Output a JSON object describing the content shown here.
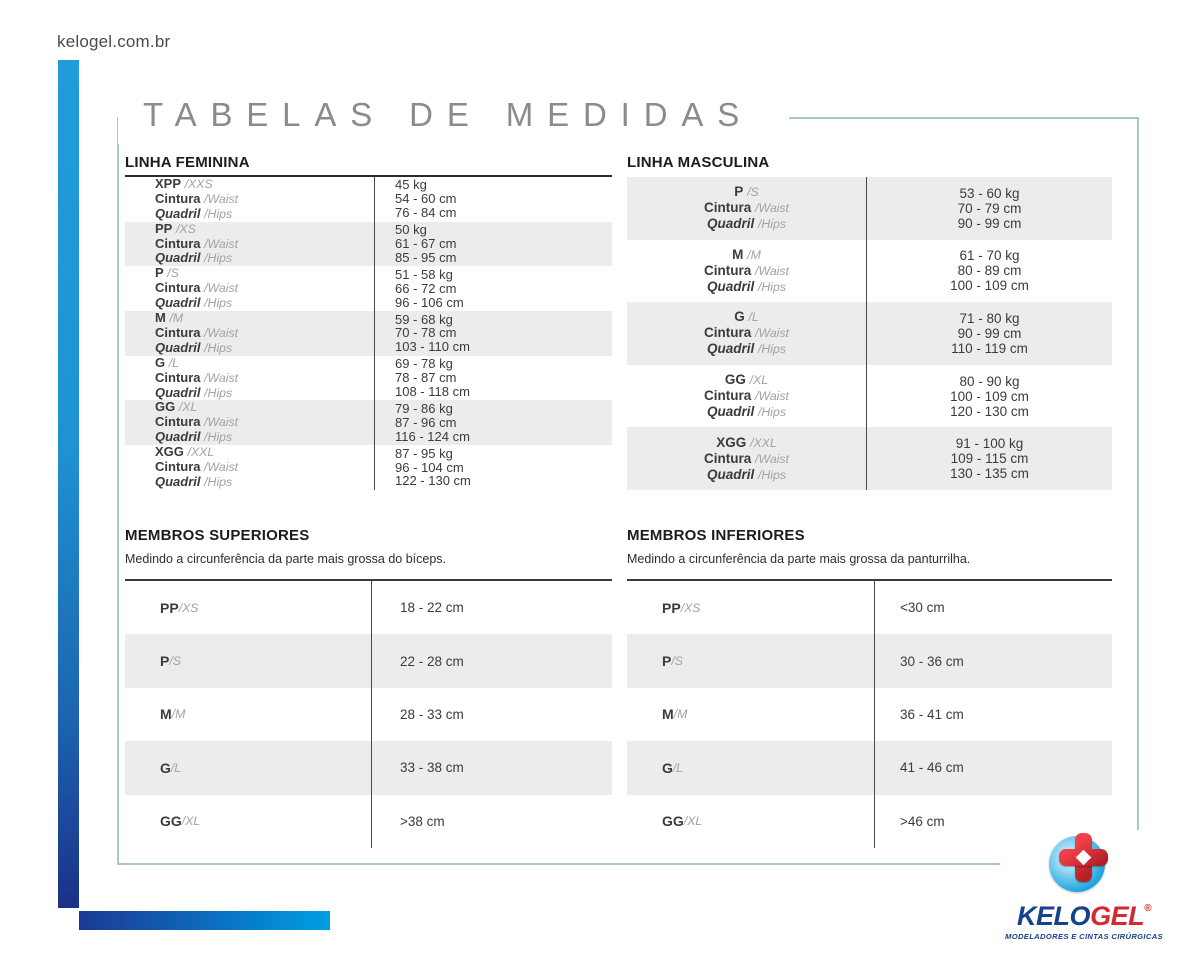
{
  "site_url": "kelogel.com.br",
  "page_title": "TABELAS DE MEDIDAS",
  "labels": {
    "waist_pt": "Cintura",
    "waist_en": "/Waist",
    "hips_pt": "Quadril",
    "hips_en": "/Hips"
  },
  "linha_feminina": {
    "title": "LINHA FEMININA",
    "rows": [
      {
        "size": "XPP",
        "size_en": "/XXS",
        "weight": "45 kg",
        "waist": "54 - 60 cm",
        "hips": "76 - 84 cm"
      },
      {
        "size": "PP",
        "size_en": "/XS",
        "weight": "50 kg",
        "waist": "61 - 67 cm",
        "hips": "85 - 95 cm"
      },
      {
        "size": "P",
        "size_en": "/S",
        "weight": "51 - 58 kg",
        "waist": "66 - 72 cm",
        "hips": "96 - 106 cm"
      },
      {
        "size": "M",
        "size_en": "/M",
        "weight": "59 - 68 kg",
        "waist": "70 - 78 cm",
        "hips": "103 - 110 cm"
      },
      {
        "size": "G",
        "size_en": "/L",
        "weight": "69 - 78 kg",
        "waist": "78 - 87 cm",
        "hips": "108 - 118 cm"
      },
      {
        "size": "GG",
        "size_en": "/XL",
        "weight": "79 - 86 kg",
        "waist": "87 - 96 cm",
        "hips": "116 - 124 cm"
      },
      {
        "size": "XGG",
        "size_en": "/XXL",
        "weight": "87 - 95 kg",
        "waist": "96 - 104 cm",
        "hips": "122 - 130 cm"
      }
    ]
  },
  "linha_masculina": {
    "title": "LINHA MASCULINA",
    "rows": [
      {
        "size": "P",
        "size_en": "/S",
        "weight": "53 - 60 kg",
        "waist": "70 - 79 cm",
        "hips": "90 - 99 cm"
      },
      {
        "size": "M",
        "size_en": "/M",
        "weight": "61 - 70 kg",
        "waist": "80 - 89 cm",
        "hips": "100 - 109 cm"
      },
      {
        "size": "G",
        "size_en": "/L",
        "weight": "71 - 80 kg",
        "waist": "90 - 99 cm",
        "hips": "110 - 119 cm"
      },
      {
        "size": "GG",
        "size_en": "/XL",
        "weight": "80 - 90 kg",
        "waist": "100 - 109 cm",
        "hips": "120 - 130 cm"
      },
      {
        "size": "XGG",
        "size_en": "/XXL",
        "weight": "91 - 100 kg",
        "waist": "109 - 115 cm",
        "hips": "130 - 135 cm"
      }
    ]
  },
  "membros_superiores": {
    "title": "MEMBROS SUPERIORES",
    "description": "Medindo a circunferência da parte mais grossa do bíceps.",
    "rows": [
      {
        "size": "PP",
        "size_en": "/XS",
        "value": "18 - 22 cm"
      },
      {
        "size": "P",
        "size_en": "/S",
        "value": "22 - 28 cm"
      },
      {
        "size": "M",
        "size_en": "/M",
        "value": "28 - 33 cm"
      },
      {
        "size": "G",
        "size_en": "/L",
        "value": "33 - 38 cm"
      },
      {
        "size": "GG",
        "size_en": "/XL",
        "value": ">38 cm"
      }
    ]
  },
  "membros_inferiores": {
    "title": "MEMBROS INFERIORES",
    "description": "Medindo a circunferência da parte mais grossa da panturrilha.",
    "rows": [
      {
        "size": "PP",
        "size_en": "/XS",
        "value": "<30 cm"
      },
      {
        "size": "P",
        "size_en": "/S",
        "value": "30 - 36 cm"
      },
      {
        "size": "M",
        "size_en": "/M",
        "value": "36 - 41 cm"
      },
      {
        "size": "G",
        "size_en": "/L",
        "value": "41 - 46 cm"
      },
      {
        "size": "GG",
        "size_en": "/XL",
        "value": ">46 cm"
      }
    ]
  },
  "logo": {
    "brand_part1": "KELO",
    "brand_part2": "GEL",
    "registered": "®",
    "tagline": "MODELADORES E CINTAS CIRÚRGICAS"
  },
  "colors": {
    "accent_blue_top": "#209cda",
    "accent_navy": "#1b3188",
    "accent_cyan": "#00a0e3",
    "frame_border": "#aac6ca",
    "row_gray": "#ececec",
    "text_dark": "#3b3b3b",
    "text_gray": "#a2a2a2",
    "title_gray": "#8b8b8b",
    "logo_blue": "#16418c",
    "logo_red": "#d7282f"
  }
}
